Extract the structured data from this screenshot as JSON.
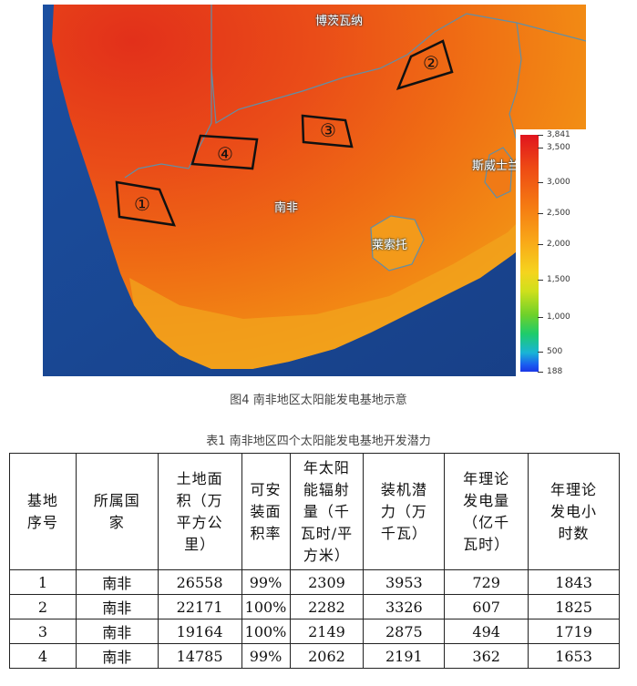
{
  "map": {
    "labels": {
      "botswana": "博茨瓦纳",
      "south_africa": "南非",
      "lesotho": "莱索托",
      "eswatini": "斯威士兰"
    },
    "sites": [
      "①",
      "②",
      "③",
      "④"
    ],
    "legend": {
      "max_value": "3,841",
      "ticks": [
        "3,500",
        "3,000",
        "2,500",
        "2,000",
        "1,500",
        "1,000",
        "500"
      ],
      "min_value": "188"
    }
  },
  "figure_caption": "图4  南非地区太阳能发电基地示意",
  "table_caption": "表1  南非地区四个太阳能发电基地开发潜力",
  "table": {
    "headers": [
      "基地\n序号",
      "所属国\n家",
      "土地面\n积（万\n平方公\n里）",
      "可安\n装面\n积率",
      "年太阳\n能辐射\n量（千\n瓦时/平\n方米）",
      "装机潜\n力（万\n千瓦）",
      "年理论\n发电量\n（亿千\n瓦时）",
      "年理论\n发电小\n时数"
    ],
    "rows": [
      [
        "1",
        "南非",
        "26558",
        "99%",
        "2309",
        "3953",
        "729",
        "1843"
      ],
      [
        "2",
        "南非",
        "22171",
        "100%",
        "2282",
        "3326",
        "607",
        "1825"
      ],
      [
        "3",
        "南非",
        "19164",
        "100%",
        "2149",
        "2875",
        "494",
        "1719"
      ],
      [
        "4",
        "南非",
        "14785",
        "99%",
        "2062",
        "2191",
        "362",
        "1653"
      ]
    ]
  }
}
